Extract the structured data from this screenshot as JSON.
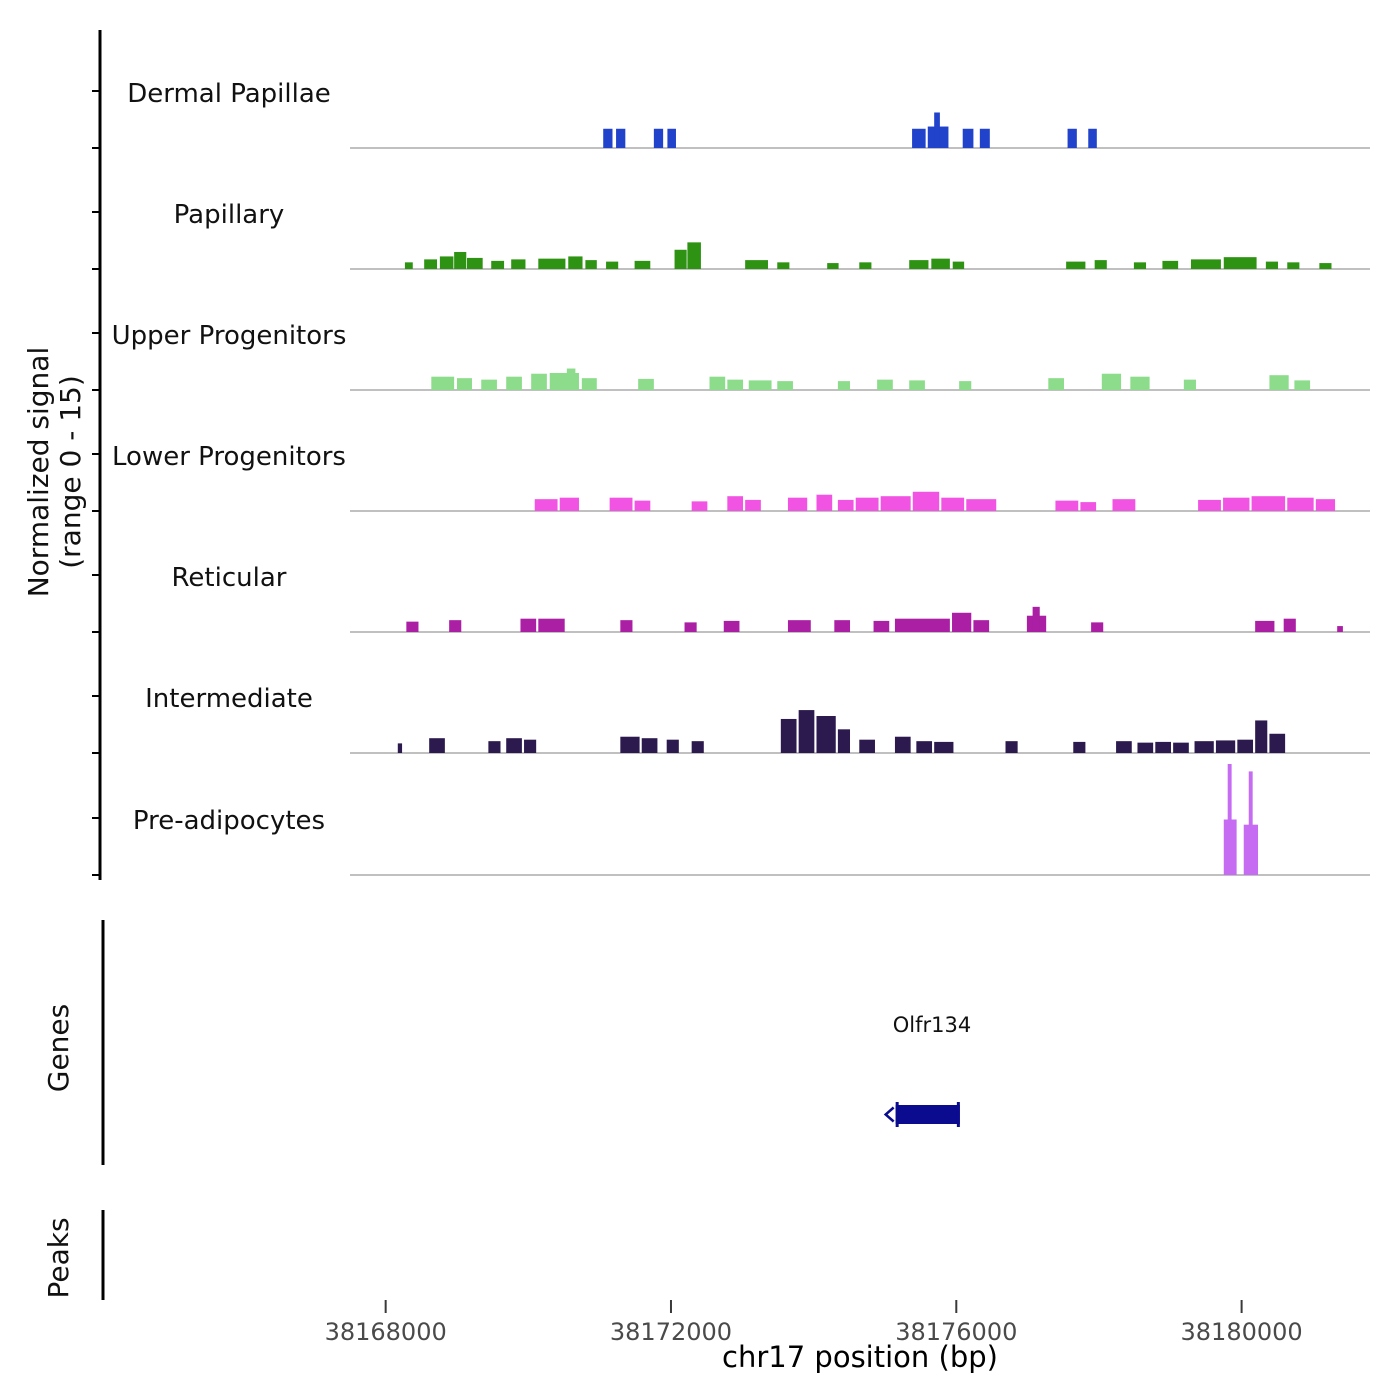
{
  "chart_data": {
    "type": "area",
    "title": "",
    "xlabel": "chr17 position (bp)",
    "ylabel": "Normalized signal (range 0 - 15)",
    "ylabel_lines": [
      "Normalized signal",
      "(range 0 - 15)"
    ],
    "xlim": [
      38167500,
      38181800
    ],
    "y_range_per_track": [
      0,
      15
    ],
    "grid": false,
    "x_axis": {
      "chrom": "chr17",
      "unit": "bp",
      "tick_positions": [
        38168000,
        38172000,
        38176000,
        38180000
      ],
      "tick_labels": [
        "38168000",
        "38172000",
        "38176000",
        "38180000"
      ]
    },
    "bars_schema": [
      "start_bp",
      "end_bp",
      "height_signal_units"
    ],
    "tracks": [
      {
        "label": "Dermal Papillae",
        "color": "#2143cb",
        "bars": [
          [
            38171050,
            38171180,
            2.6
          ],
          [
            38171230,
            38171360,
            2.6
          ],
          [
            38171760,
            38171890,
            2.6
          ],
          [
            38171950,
            38172070,
            2.6
          ],
          [
            38175380,
            38175570,
            2.6
          ],
          [
            38175600,
            38175890,
            2.9
          ],
          [
            38175690,
            38175770,
            4.8
          ],
          [
            38176090,
            38176240,
            2.6
          ],
          [
            38176330,
            38176470,
            2.6
          ],
          [
            38177560,
            38177690,
            2.6
          ],
          [
            38177850,
            38177970,
            2.6
          ]
        ]
      },
      {
        "label": "Papillary",
        "color": "#2e9313",
        "bars": [
          [
            38168270,
            38168380,
            0.9
          ],
          [
            38168540,
            38168720,
            1.3
          ],
          [
            38168760,
            38168950,
            1.7
          ],
          [
            38168960,
            38169130,
            2.3
          ],
          [
            38169140,
            38169360,
            1.5
          ],
          [
            38169480,
            38169660,
            1.1
          ],
          [
            38169760,
            38169960,
            1.3
          ],
          [
            38170140,
            38170520,
            1.4
          ],
          [
            38170560,
            38170760,
            1.7
          ],
          [
            38170800,
            38170960,
            1.2
          ],
          [
            38171090,
            38171260,
            1.0
          ],
          [
            38171490,
            38171710,
            1.1
          ],
          [
            38172050,
            38172220,
            2.6
          ],
          [
            38172230,
            38172420,
            3.6
          ],
          [
            38173040,
            38173360,
            1.2
          ],
          [
            38173490,
            38173660,
            0.9
          ],
          [
            38174190,
            38174350,
            0.8
          ],
          [
            38174640,
            38174810,
            0.9
          ],
          [
            38175340,
            38175610,
            1.2
          ],
          [
            38175650,
            38175910,
            1.4
          ],
          [
            38175950,
            38176110,
            1.0
          ],
          [
            38177540,
            38177810,
            1.0
          ],
          [
            38177940,
            38178110,
            1.2
          ],
          [
            38178490,
            38178660,
            0.9
          ],
          [
            38178890,
            38179110,
            1.1
          ],
          [
            38179290,
            38179710,
            1.3
          ],
          [
            38179750,
            38180210,
            1.6
          ],
          [
            38180340,
            38180510,
            1.0
          ],
          [
            38180640,
            38180810,
            0.9
          ],
          [
            38181090,
            38181260,
            0.8
          ]
        ]
      },
      {
        "label": "Upper Progenitors",
        "color": "#8cdc8c",
        "bars": [
          [
            38168640,
            38168960,
            1.8
          ],
          [
            38169000,
            38169210,
            1.6
          ],
          [
            38169340,
            38169560,
            1.4
          ],
          [
            38169690,
            38169910,
            1.8
          ],
          [
            38170040,
            38170260,
            2.2
          ],
          [
            38170300,
            38170710,
            2.3
          ],
          [
            38170540,
            38170660,
            2.9
          ],
          [
            38170750,
            38170960,
            1.6
          ],
          [
            38171540,
            38171760,
            1.5
          ],
          [
            38172540,
            38172760,
            1.8
          ],
          [
            38172790,
            38173010,
            1.4
          ],
          [
            38173090,
            38173410,
            1.3
          ],
          [
            38173490,
            38173710,
            1.2
          ],
          [
            38174340,
            38174510,
            1.2
          ],
          [
            38174890,
            38175110,
            1.4
          ],
          [
            38175340,
            38175560,
            1.3
          ],
          [
            38176040,
            38176210,
            1.2
          ],
          [
            38177290,
            38177510,
            1.6
          ],
          [
            38178040,
            38178310,
            2.2
          ],
          [
            38178440,
            38178710,
            1.8
          ],
          [
            38179190,
            38179360,
            1.4
          ],
          [
            38180390,
            38180660,
            2.0
          ],
          [
            38180740,
            38180960,
            1.3
          ]
        ]
      },
      {
        "label": "Lower Progenitors",
        "color": "#f153e2",
        "bars": [
          [
            38170090,
            38170410,
            1.6
          ],
          [
            38170440,
            38170710,
            1.8
          ],
          [
            38171140,
            38171460,
            1.8
          ],
          [
            38171490,
            38171710,
            1.4
          ],
          [
            38172290,
            38172510,
            1.3
          ],
          [
            38172790,
            38173010,
            2.0
          ],
          [
            38173040,
            38173260,
            1.5
          ],
          [
            38173640,
            38173910,
            1.8
          ],
          [
            38174040,
            38174260,
            2.2
          ],
          [
            38174340,
            38174560,
            1.5
          ],
          [
            38174590,
            38174910,
            1.8
          ],
          [
            38174940,
            38175360,
            2.0
          ],
          [
            38175390,
            38175760,
            2.6
          ],
          [
            38175790,
            38176110,
            1.8
          ],
          [
            38176140,
            38176560,
            1.6
          ],
          [
            38177390,
            38177710,
            1.4
          ],
          [
            38177740,
            38177960,
            1.2
          ],
          [
            38178190,
            38178510,
            1.6
          ],
          [
            38179390,
            38179710,
            1.5
          ],
          [
            38179740,
            38180110,
            1.8
          ],
          [
            38180140,
            38180610,
            2.0
          ],
          [
            38180640,
            38181010,
            1.8
          ],
          [
            38181040,
            38181310,
            1.6
          ]
        ]
      },
      {
        "label": "Reticular",
        "color": "#aa1fa4",
        "bars": [
          [
            38168290,
            38168460,
            1.4
          ],
          [
            38168890,
            38169060,
            1.6
          ],
          [
            38169890,
            38170110,
            1.8
          ],
          [
            38170140,
            38170510,
            1.8
          ],
          [
            38171290,
            38171460,
            1.6
          ],
          [
            38172190,
            38172360,
            1.3
          ],
          [
            38172740,
            38172960,
            1.5
          ],
          [
            38173640,
            38173960,
            1.6
          ],
          [
            38174290,
            38174510,
            1.6
          ],
          [
            38174840,
            38175060,
            1.5
          ],
          [
            38175140,
            38175910,
            1.8
          ],
          [
            38175940,
            38176210,
            2.6
          ],
          [
            38176240,
            38176460,
            1.6
          ],
          [
            38176990,
            38177260,
            2.2
          ],
          [
            38177070,
            38177170,
            3.4
          ],
          [
            38177890,
            38178060,
            1.3
          ],
          [
            38180190,
            38180460,
            1.5
          ],
          [
            38180590,
            38180760,
            1.8
          ],
          [
            38181340,
            38181420,
            0.8
          ]
        ]
      },
      {
        "label": "Intermediate",
        "color": "#2c1a4f",
        "bars": [
          [
            38168170,
            38168230,
            1.3
          ],
          [
            38168610,
            38168830,
            2.0
          ],
          [
            38169440,
            38169610,
            1.6
          ],
          [
            38169690,
            38169910,
            2.0
          ],
          [
            38169940,
            38170110,
            1.8
          ],
          [
            38171290,
            38171560,
            2.2
          ],
          [
            38171590,
            38171810,
            2.0
          ],
          [
            38171940,
            38172110,
            1.8
          ],
          [
            38172290,
            38172460,
            1.6
          ],
          [
            38173540,
            38173760,
            4.6
          ],
          [
            38173790,
            38174010,
            5.8
          ],
          [
            38174040,
            38174310,
            5.0
          ],
          [
            38174340,
            38174510,
            3.2
          ],
          [
            38174640,
            38174860,
            1.8
          ],
          [
            38175140,
            38175360,
            2.2
          ],
          [
            38175440,
            38175660,
            1.6
          ],
          [
            38175690,
            38175960,
            1.5
          ],
          [
            38176690,
            38176860,
            1.6
          ],
          [
            38177640,
            38177810,
            1.5
          ],
          [
            38178240,
            38178460,
            1.6
          ],
          [
            38178540,
            38178760,
            1.4
          ],
          [
            38178790,
            38179010,
            1.5
          ],
          [
            38179040,
            38179260,
            1.4
          ],
          [
            38179340,
            38179610,
            1.6
          ],
          [
            38179640,
            38179910,
            1.7
          ],
          [
            38179940,
            38180160,
            1.8
          ],
          [
            38180190,
            38180360,
            4.4
          ],
          [
            38180390,
            38180610,
            2.6
          ]
        ]
      },
      {
        "label": "Pre-adipocytes",
        "color": "#c66cf2",
        "bars": [
          [
            38179750,
            38179930,
            7.5
          ],
          [
            38179805,
            38179860,
            15
          ],
          [
            38180030,
            38180230,
            6.8
          ],
          [
            38180100,
            38180155,
            14
          ]
        ]
      }
    ],
    "gene_track": {
      "label": "Genes",
      "genes": [
        {
          "name": "Olfr134",
          "start": 38175150,
          "end": 38176050,
          "strand": "-",
          "color": "#0b0b8f"
        }
      ]
    },
    "peaks_track": {
      "label": "Peaks",
      "peaks": []
    }
  }
}
